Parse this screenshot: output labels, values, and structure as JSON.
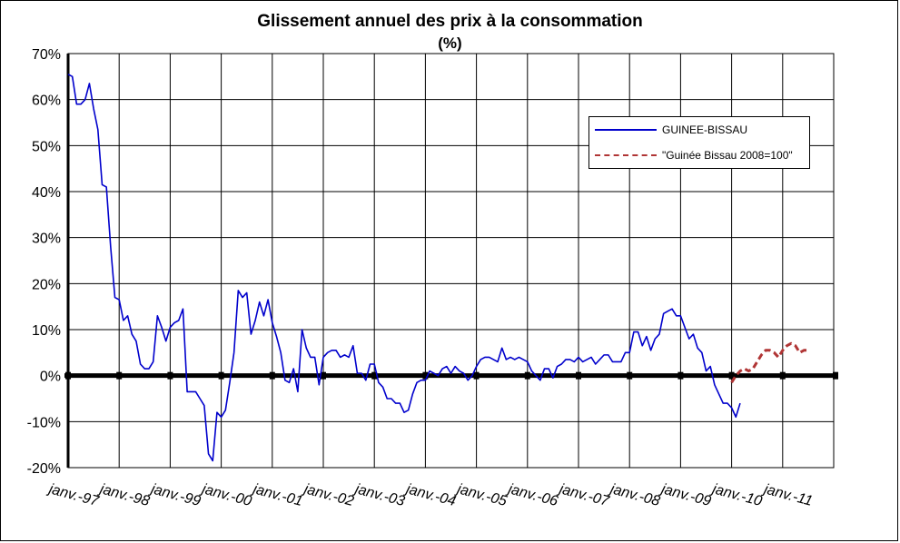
{
  "chart_data": {
    "type": "line",
    "title": "Glissement annuel des prix à la consommation",
    "subtitle": "(%)",
    "ylim": [
      -20,
      70
    ],
    "yticks": [
      "70%",
      "60%",
      "50%",
      "40%",
      "30%",
      "20%",
      "10%",
      "0%",
      "-10%",
      "-20%"
    ],
    "ytick_values": [
      70,
      60,
      50,
      40,
      30,
      20,
      10,
      0,
      -10,
      -20
    ],
    "x_start": "janv.-97",
    "xticks": [
      "janv.-97",
      "janv.-98",
      "janv.-99",
      "janv.-00",
      "janv.-01",
      "janv.-02",
      "janv.-03",
      "janv.-04",
      "janv.-05",
      "janv.-06",
      "janv.-07",
      "janv.-08",
      "janv.-09",
      "janv.-10",
      "janv.-11"
    ],
    "xtick_month_index": [
      0,
      12,
      24,
      36,
      48,
      60,
      72,
      84,
      96,
      108,
      120,
      132,
      144,
      156,
      168
    ],
    "x_max_month_index": 180,
    "grid": true,
    "legend_position": "top-right",
    "series": [
      {
        "name": "GUINEE-BISSAU",
        "color": "#0000cc",
        "style": "solid",
        "start_month_index": 0,
        "values": [
          65.5,
          65,
          59,
          59,
          60,
          63.5,
          58,
          53.5,
          41.5,
          41,
          28,
          17,
          16.5,
          12,
          13,
          9,
          7.5,
          2.5,
          1.5,
          1.5,
          3,
          13,
          10.5,
          7.5,
          10.5,
          11.5,
          12,
          14.5,
          -3.5,
          -3.5,
          -3.5,
          -5,
          -6.5,
          -17,
          -18.5,
          -8,
          -9,
          -7.5,
          -1.5,
          5,
          18.5,
          17,
          18,
          9,
          12,
          16,
          13,
          16.5,
          11.5,
          8.5,
          5,
          -1,
          -1.5,
          1.5,
          -3.5,
          10,
          6,
          4,
          4,
          -2,
          4,
          5,
          5.5,
          5.5,
          4,
          4.5,
          4,
          6.5,
          0.5,
          0.5,
          -1,
          2.5,
          2.5,
          -1.5,
          -2.5,
          -5,
          -5,
          -6,
          -6,
          -8,
          -7.5,
          -4,
          -1.5,
          -1,
          -1,
          1,
          0.5,
          0,
          1.5,
          2,
          0.5,
          2,
          1,
          0.5,
          -1,
          0,
          2,
          3.5,
          4,
          4,
          3.5,
          3,
          6,
          3.5,
          4,
          3.5,
          4,
          3.5,
          3,
          1,
          0,
          -1,
          1.5,
          1.5,
          -0.5,
          2,
          2.5,
          3.5,
          3.5,
          3,
          4,
          3,
          3.5,
          4,
          2.5,
          3.5,
          4.5,
          4.5,
          3,
          3,
          3,
          5,
          5,
          9.5,
          9.5,
          6.5,
          8.5,
          5.5,
          8,
          9,
          13.5,
          14,
          14.5,
          13,
          13,
          10.5,
          8,
          9,
          6,
          5,
          1,
          2,
          -2,
          -4,
          -6,
          -6,
          -7,
          -9,
          -6
        ]
      },
      {
        "name": "\"Guinée Bissau 2008=100\"",
        "color": "#b03535",
        "style": "dashed",
        "start_month_index": 156,
        "values": [
          -1.5,
          0,
          1,
          1.5,
          1,
          1.5,
          3,
          4.5,
          5.5,
          5.5,
          5,
          4,
          5.5,
          6.5,
          7,
          6.5,
          5,
          5.5,
          5.5
        ]
      }
    ]
  }
}
